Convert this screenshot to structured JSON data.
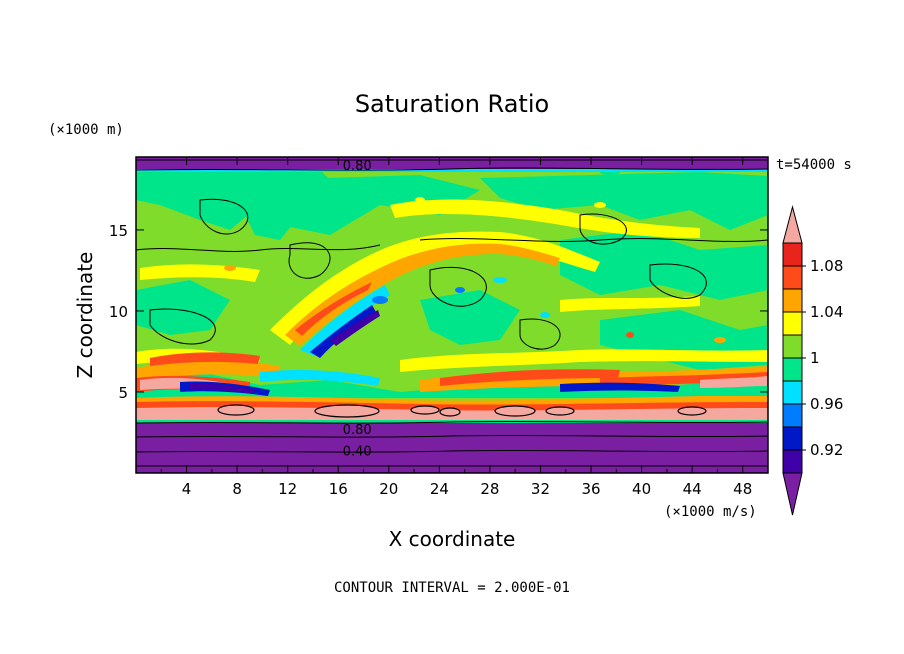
{
  "chart_data": {
    "type": "heatmap",
    "title": "Saturation Ratio",
    "xlabel": "X coordinate",
    "ylabel": "Z coordinate",
    "x_unit": "(×1000 m/s)",
    "y_unit": "(×1000 m)",
    "time_label": "t=54000 s",
    "footer": "CONTOUR INTERVAL = 2.000E-01",
    "xlim": [
      0,
      50
    ],
    "ylim": [
      0,
      19.5
    ],
    "xticks": [
      4,
      8,
      12,
      16,
      20,
      24,
      28,
      32,
      36,
      40,
      44,
      48
    ],
    "yticks": [
      5,
      10,
      15
    ],
    "contour_labels": [
      {
        "text": "0.80",
        "x": 17.5,
        "z": 19.0
      },
      {
        "text": "0.80",
        "x": 17.5,
        "z": 2.7
      },
      {
        "text": "0.40",
        "x": 17.5,
        "z": 1.4
      }
    ],
    "colorbar": {
      "levels": [
        0.9,
        0.92,
        0.94,
        0.96,
        0.98,
        1.0,
        1.02,
        1.04,
        1.06,
        1.08,
        1.1
      ],
      "tick_labels": [
        "0.92",
        "0.96",
        "1",
        "1.04",
        "1.08"
      ],
      "colors": [
        "#7b1fa2",
        "#3f00a8",
        "#0018c8",
        "#007cff",
        "#00e0ff",
        "#00e58a",
        "#7fdc2a",
        "#ffff00",
        "#ffa500",
        "#ff4a1a",
        "#e8241c",
        "#f4a8a0"
      ]
    }
  },
  "colors": {
    "purple": "#7b1fa2",
    "dark_purple": "#3f00a8",
    "blue": "#0018c8",
    "light_blue": "#007cff",
    "cyan": "#00e0ff",
    "green_aqua": "#00e58a",
    "yellow_green": "#7fdc2a",
    "yellow": "#ffff00",
    "orange": "#ffa500",
    "red_orange": "#ff4a1a",
    "red": "#e8241c",
    "pink": "#f4a8a0"
  }
}
